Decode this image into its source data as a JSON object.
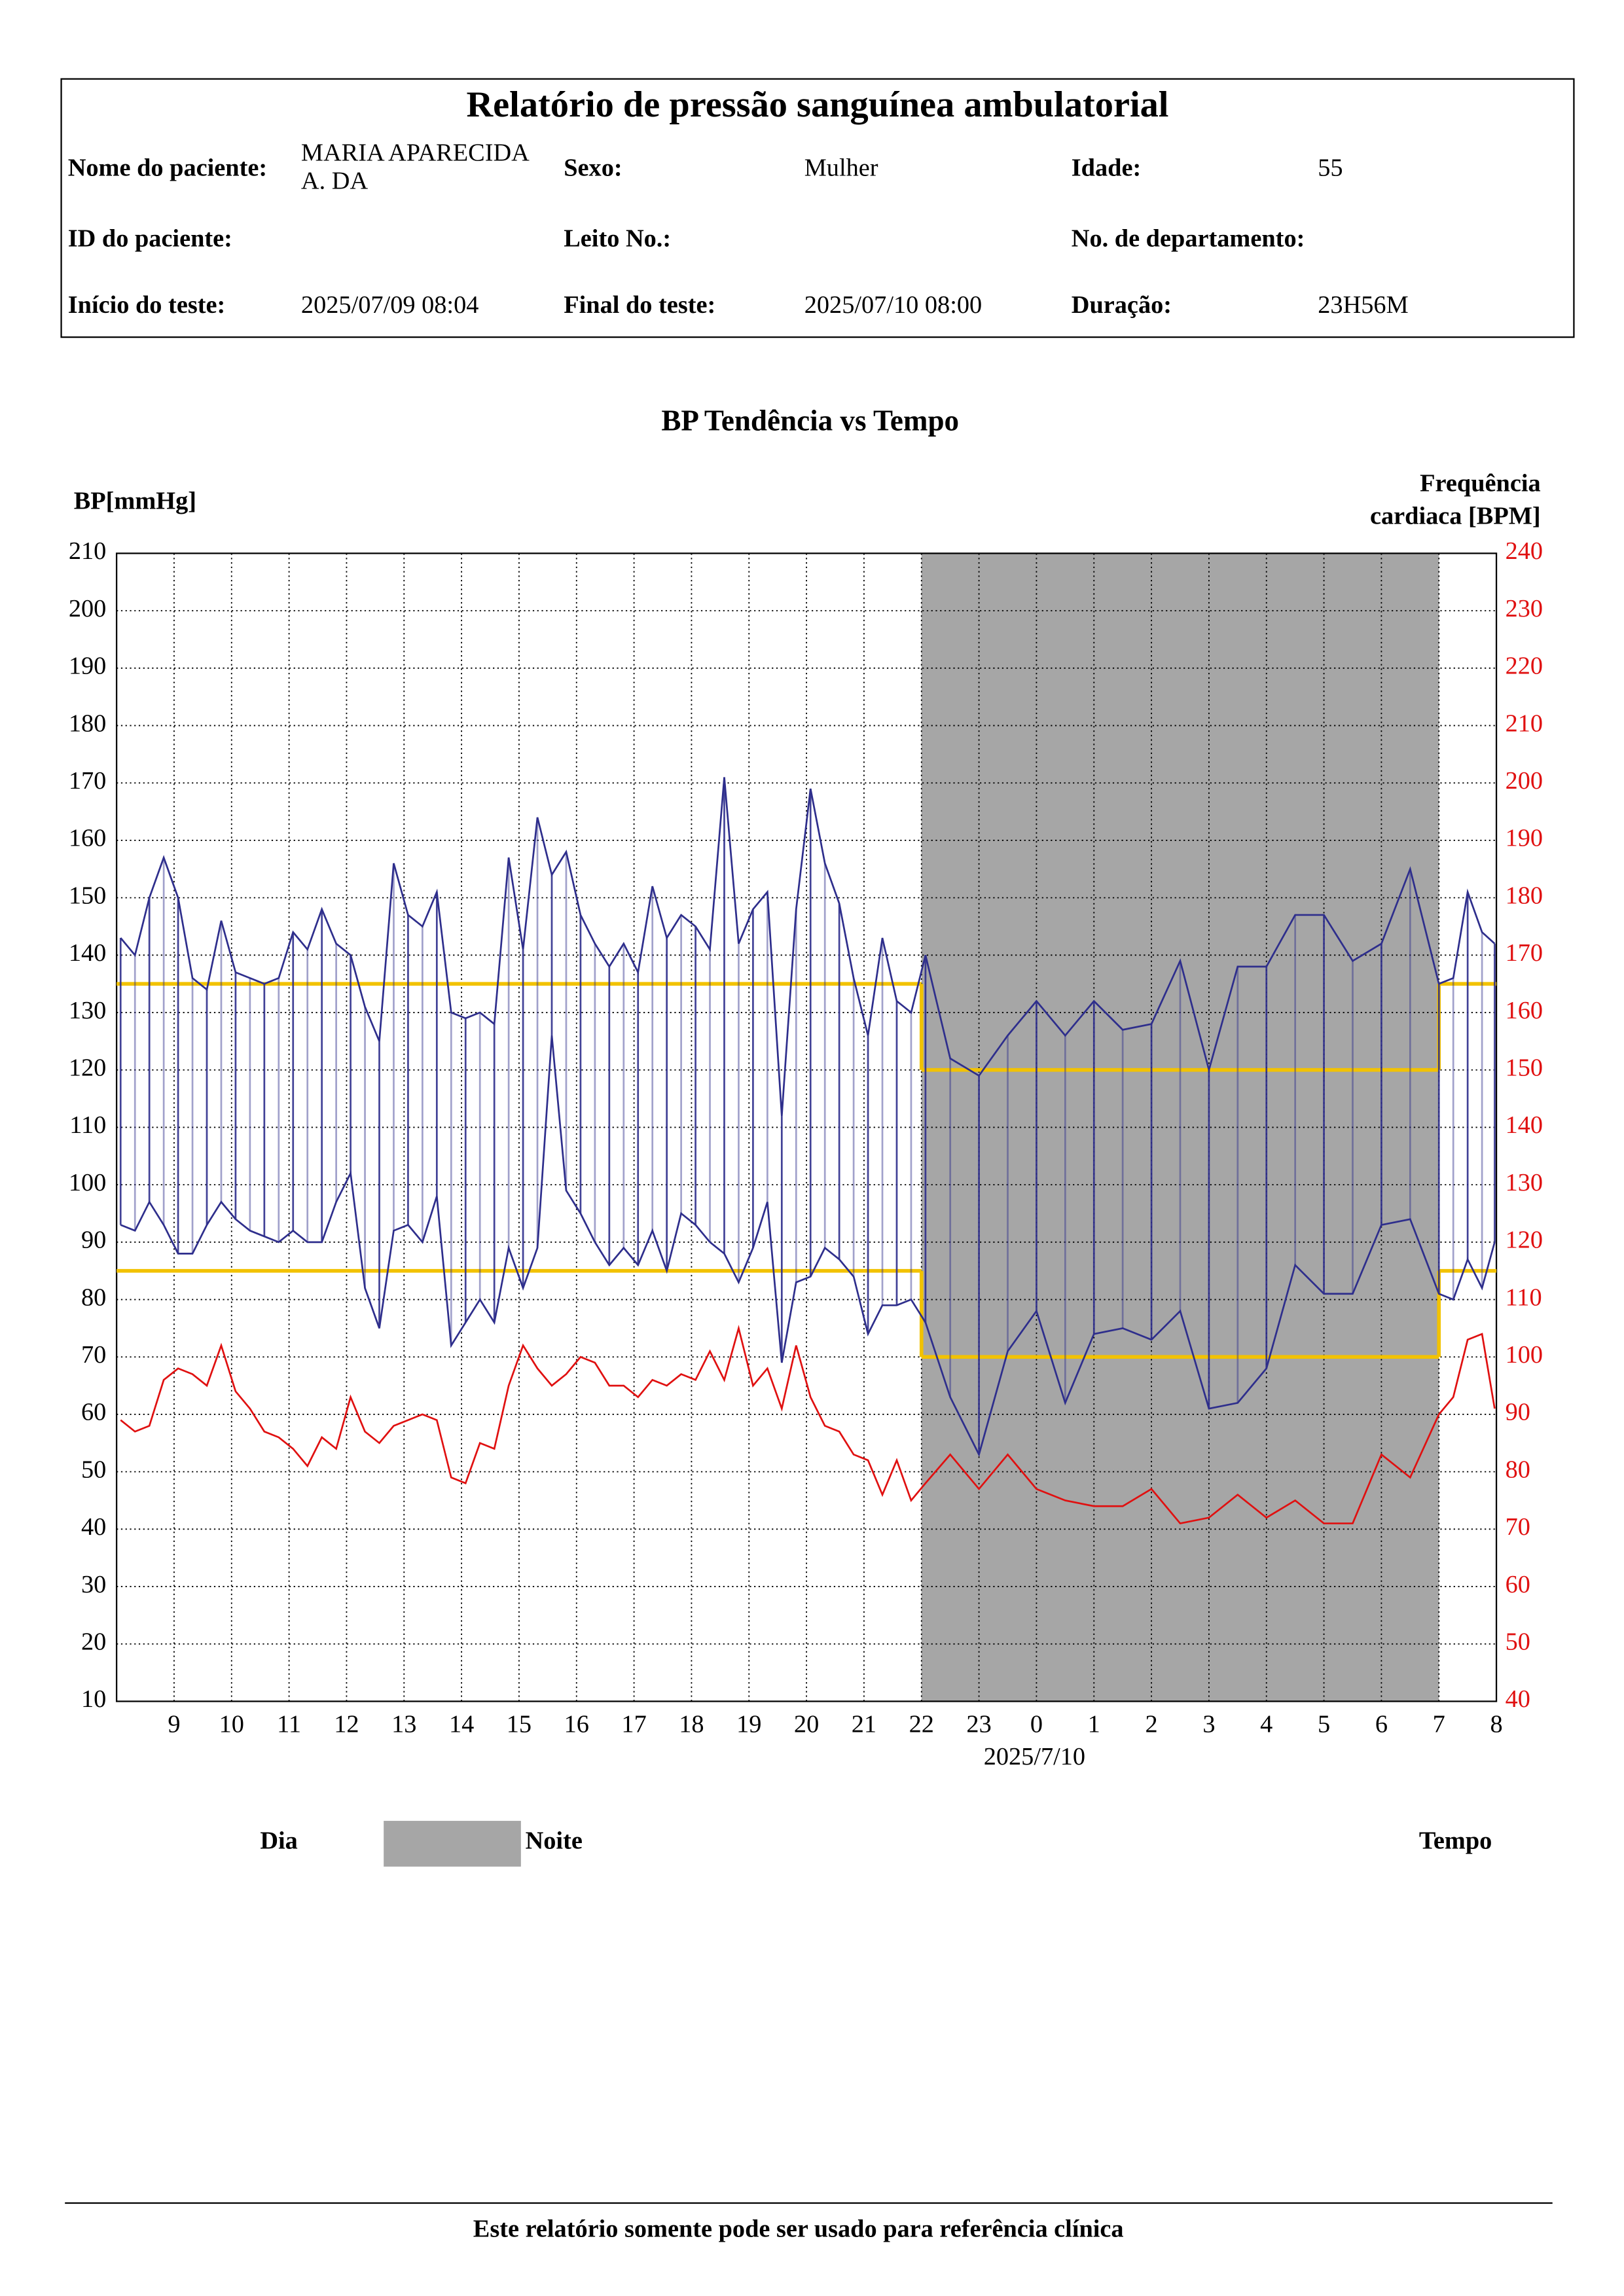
{
  "header": {
    "title": "Relatório de pressão sanguínea ambulatorial",
    "rows": [
      [
        {
          "label": "Nome do paciente:",
          "value": "MARIA APARECIDA A. DA"
        },
        {
          "label": "Sexo:",
          "value": "Mulher"
        },
        {
          "label": "Idade:",
          "value": "55"
        }
      ],
      [
        {
          "label": "ID do paciente:"
        },
        {
          "label": "Leito No.:"
        },
        {
          "label": "No. de departamento:"
        }
      ],
      [
        {
          "label": "Início do teste:",
          "value": "2025/07/09 08:04"
        },
        {
          "label": "Final do teste:",
          "value": "2025/07/10 08:00"
        },
        {
          "label": "Duração:",
          "value": "23H56M"
        }
      ]
    ]
  },
  "chart_data": {
    "type": "line",
    "title": "BP Tendência vs Tempo",
    "y_label": "BP[mmHg]",
    "y2_label": "Frequência cardiaca [BPM]",
    "date_label": "2025/7/10",
    "day_label": "Dia",
    "night_label": "Noite",
    "x_label": "Tempo",
    "night_color": "#a6a6a6",
    "night_range": [
      22,
      31
    ],
    "limit_color": "#f2c200",
    "limits": {
      "day": {
        "systolic": 135,
        "diastolic": 85
      },
      "night": {
        "systolic": 120,
        "diastolic": 70
      }
    },
    "grid": true,
    "xlim": [
      8,
      32
    ],
    "xticks": [
      9,
      10,
      11,
      12,
      13,
      14,
      15,
      16,
      17,
      18,
      19,
      20,
      21,
      22,
      23,
      {
        "value": 24,
        "label": "0"
      },
      {
        "value": 25,
        "label": "1"
      },
      {
        "value": 26,
        "label": "2"
      },
      {
        "value": 27,
        "label": "3"
      },
      {
        "value": 28,
        "label": "4"
      },
      {
        "value": 29,
        "label": "5"
      },
      {
        "value": 30,
        "label": "6"
      },
      {
        "value": 31,
        "label": "7"
      },
      {
        "value": 32,
        "label": "8"
      }
    ],
    "ylim": [
      10,
      210
    ],
    "yticks": [
      10,
      20,
      30,
      40,
      50,
      60,
      70,
      80,
      90,
      100,
      110,
      120,
      130,
      140,
      150,
      160,
      170,
      180,
      190,
      200,
      210
    ],
    "y2lim": [
      40,
      240
    ],
    "y2ticks": [
      40,
      50,
      60,
      70,
      80,
      90,
      100,
      110,
      120,
      130,
      140,
      150,
      160,
      170,
      180,
      190,
      200,
      210,
      220,
      230,
      240
    ],
    "x": [
      8.07,
      8.32,
      8.57,
      8.82,
      9.07,
      9.32,
      9.57,
      9.82,
      10.07,
      10.32,
      10.57,
      10.82,
      11.07,
      11.32,
      11.57,
      11.82,
      12.07,
      12.32,
      12.57,
      12.82,
      13.07,
      13.32,
      13.57,
      13.82,
      14.07,
      14.32,
      14.57,
      14.82,
      15.07,
      15.32,
      15.57,
      15.82,
      16.07,
      16.32,
      16.57,
      16.82,
      17.07,
      17.32,
      17.57,
      17.82,
      18.07,
      18.32,
      18.57,
      18.82,
      19.07,
      19.32,
      19.57,
      19.82,
      20.07,
      20.32,
      20.57,
      20.82,
      21.07,
      21.32,
      21.57,
      21.82,
      22.07,
      22.5,
      23,
      23.5,
      24,
      24.5,
      25,
      25.5,
      26,
      26.5,
      27,
      27.5,
      28,
      28.5,
      29,
      29.5,
      30,
      30.5,
      31,
      31.25,
      31.5,
      31.75,
      31.97
    ],
    "series": [
      {
        "color": "#2e2e8c",
        "values": [
          143,
          140,
          150,
          157,
          150,
          136,
          134,
          146,
          137,
          136,
          135,
          136,
          144,
          141,
          148,
          142,
          140,
          131,
          125,
          156,
          147,
          145,
          151,
          130,
          129,
          130,
          128,
          157,
          141,
          164,
          154,
          158,
          147,
          142,
          138,
          142,
          137,
          152,
          143,
          147,
          145,
          141,
          171,
          142,
          148,
          151,
          112,
          148,
          169,
          156,
          149,
          136,
          126,
          143,
          132,
          130,
          140,
          122,
          119,
          126,
          132,
          126,
          132,
          127,
          128,
          139,
          120,
          138,
          138,
          147,
          147,
          139,
          142,
          155,
          135,
          136,
          151,
          144,
          142
        ]
      },
      {
        "color": "#2e2e8c",
        "values": [
          93,
          92,
          97,
          93,
          88,
          88,
          93,
          97,
          94,
          92,
          91,
          90,
          92,
          90,
          90,
          97,
          102,
          82,
          75,
          92,
          93,
          90,
          98,
          72,
          76,
          80,
          76,
          89,
          82,
          89,
          126,
          99,
          95,
          90,
          86,
          89,
          86,
          92,
          85,
          95,
          93,
          90,
          88,
          83,
          89,
          97,
          69,
          83,
          84,
          89,
          87,
          84,
          74,
          79,
          79,
          80,
          76,
          63,
          53,
          71,
          78,
          62,
          74,
          75,
          73,
          78,
          61,
          62,
          68,
          86,
          81,
          81,
          93,
          94,
          81,
          80,
          87,
          82,
          90
        ]
      },
      {
        "color": "#e01010",
        "axis": "y2",
        "values": [
          89,
          87,
          88,
          96,
          98,
          97,
          95,
          102,
          94,
          91,
          87,
          86,
          84,
          81,
          86,
          84,
          93,
          87,
          85,
          88,
          89,
          90,
          89,
          79,
          78,
          85,
          84,
          95,
          102,
          98,
          95,
          97,
          100,
          99,
          95,
          95,
          93,
          96,
          95,
          97,
          96,
          101,
          96,
          105,
          95,
          98,
          91,
          102,
          93,
          88,
          87,
          83,
          82,
          76,
          82,
          75,
          78,
          83,
          77,
          83,
          77,
          75,
          74,
          74,
          77,
          71,
          72,
          76,
          72,
          75,
          71,
          71,
          83,
          79,
          90,
          93,
          103,
          104,
          91
        ]
      }
    ]
  },
  "footer": "Este relatório somente pode ser usado para referência clínica"
}
